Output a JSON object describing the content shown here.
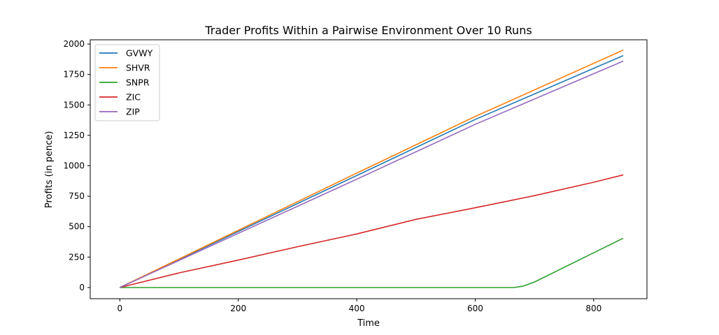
{
  "chart_data": {
    "type": "line",
    "title": "Trader Profits Within a Pairwise Environment Over 10 Runs",
    "xlabel": "Time",
    "ylabel": "Profits (in pence)",
    "xlim": [
      -50,
      890
    ],
    "ylim": [
      -92,
      2035
    ],
    "xticks": [
      0,
      200,
      400,
      600,
      800
    ],
    "yticks": [
      0,
      250,
      500,
      750,
      1000,
      1250,
      1500,
      1750,
      2000
    ],
    "grid": false,
    "legend_position": "top-left",
    "series": [
      {
        "name": "GVWY",
        "color": "#1f77b4",
        "points": [
          [
            0,
            0
          ],
          [
            200,
            460
          ],
          [
            400,
            920
          ],
          [
            600,
            1380
          ],
          [
            850,
            1905
          ]
        ]
      },
      {
        "name": "SHVR",
        "color": "#ff7f0e",
        "points": [
          [
            0,
            0
          ],
          [
            200,
            470
          ],
          [
            400,
            940
          ],
          [
            600,
            1405
          ],
          [
            850,
            1950
          ]
        ]
      },
      {
        "name": "SNPR",
        "color": "#2ca02c",
        "points": [
          [
            0,
            0
          ],
          [
            400,
            0
          ],
          [
            600,
            0
          ],
          [
            665,
            0
          ],
          [
            680,
            10
          ],
          [
            700,
            45
          ],
          [
            750,
            165
          ],
          [
            800,
            285
          ],
          [
            850,
            405
          ]
        ]
      },
      {
        "name": "ZIC",
        "color": "#d62728",
        "points": [
          [
            0,
            0
          ],
          [
            100,
            120
          ],
          [
            200,
            225
          ],
          [
            300,
            335
          ],
          [
            400,
            440
          ],
          [
            500,
            560
          ],
          [
            600,
            655
          ],
          [
            700,
            755
          ],
          [
            800,
            865
          ],
          [
            850,
            925
          ]
        ]
      },
      {
        "name": "ZIP",
        "color": "#9467bd",
        "points": [
          [
            0,
            0
          ],
          [
            200,
            445
          ],
          [
            400,
            890
          ],
          [
            600,
            1340
          ],
          [
            850,
            1860
          ]
        ]
      }
    ]
  }
}
